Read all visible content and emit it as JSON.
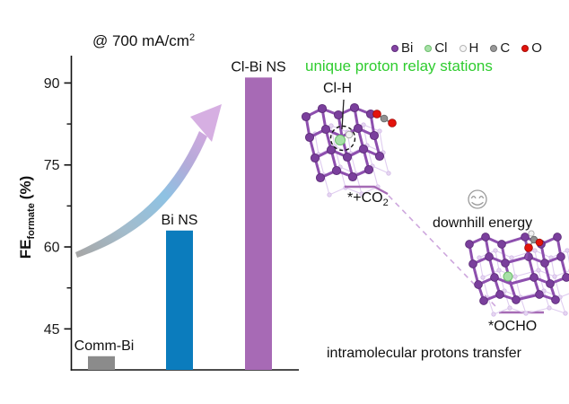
{
  "chart_data": {
    "type": "bar",
    "annotation_text": "@ 700 mA/cm",
    "annotation_sup": "2",
    "ylabel": {
      "main": "FE",
      "sub": "formate",
      "unit": "(%)"
    },
    "categories": [
      "Comm-Bi",
      "Bi NS",
      "Cl-Bi NS"
    ],
    "values": [
      40,
      63,
      91
    ],
    "bar_colors": [
      "#8b8b8b",
      "#0b7cbd",
      "#a76ab5"
    ],
    "ylim": [
      37.5,
      95
    ],
    "yticks": [
      45,
      60,
      75,
      90
    ],
    "yticks_minor": [
      52.5,
      67.5,
      82.5
    ],
    "grid": "off",
    "unit": "%"
  },
  "legend": {
    "items": [
      {
        "label": "Bi",
        "color": "#8544a5",
        "edge": "#5e2d7a"
      },
      {
        "label": "Cl",
        "color": "#a8e0a8",
        "edge": "#6cbf6c"
      },
      {
        "label": "H",
        "color": "#f7f7f7",
        "edge": "#b5b5b5"
      },
      {
        "label": "C",
        "color": "#999999",
        "edge": "#6e6e6e"
      },
      {
        "label": "O",
        "color": "#e3130c",
        "edge": "#a80d08"
      }
    ]
  },
  "right_panel": {
    "headline": "unique proton relay stations",
    "headline_color": "#2fcc2f",
    "site_label": "Cl-H",
    "state1_text": "*+CO",
    "state1_sub": "2",
    "downhill_label": "downhill energy",
    "state2_label": "*OCHO",
    "caption": "intramolecular protons transfer"
  }
}
